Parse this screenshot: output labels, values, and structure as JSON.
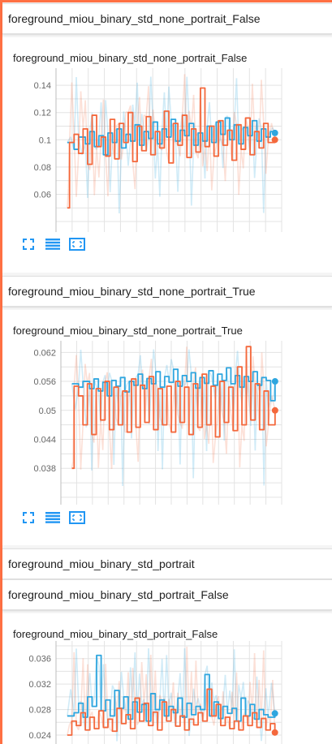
{
  "sections": {
    "s1": {
      "header": "foreground_miou_binary_std_none_portrait_False"
    },
    "s2": {
      "header": "foreground_miou_binary_std_none_portrait_True"
    },
    "s3": {
      "header": "foreground_miou_binary_std_portrait"
    },
    "s4": {
      "header": "foreground_miou_binary_std_portrait_False"
    }
  },
  "colors": {
    "accent": "#ff7043",
    "series_blue": "#2fa6df",
    "series_orange": "#f4683c"
  },
  "icons": [
    "fit-domain-icon",
    "toggle-log-scale-icon",
    "expand-chart-icon"
  ],
  "chart_data": [
    {
      "type": "line",
      "title": "foreground_miou_binary_std_none_portrait_False",
      "ylim": [
        0.043,
        0.149
      ],
      "yticks": [
        "0.14",
        "0.12",
        "0.1",
        "0.08",
        "0.06"
      ],
      "ytick_values": [
        0.14,
        0.12,
        0.1,
        0.08,
        0.06
      ],
      "xlim": [
        0,
        1
      ],
      "grid": true,
      "series": [
        {
          "color": "#2fa6df",
          "x": [
            0.05,
            0.08,
            0.1,
            0.13,
            0.15,
            0.17,
            0.19,
            0.21,
            0.23,
            0.25,
            0.27,
            0.29,
            0.31,
            0.33,
            0.35,
            0.37,
            0.39,
            0.41,
            0.43,
            0.45,
            0.47,
            0.49,
            0.51,
            0.53,
            0.55,
            0.57,
            0.59,
            0.61,
            0.63,
            0.65,
            0.67,
            0.69,
            0.71,
            0.73,
            0.75,
            0.77,
            0.79,
            0.81,
            0.83,
            0.85,
            0.87,
            0.89,
            0.91,
            0.93,
            0.95,
            0.97
          ],
          "y": [
            0.098,
            0.093,
            0.102,
            0.097,
            0.106,
            0.095,
            0.103,
            0.089,
            0.105,
            0.098,
            0.108,
            0.094,
            0.104,
            0.099,
            0.111,
            0.096,
            0.106,
            0.101,
            0.113,
            0.097,
            0.108,
            0.102,
            0.115,
            0.099,
            0.107,
            0.103,
            0.112,
            0.096,
            0.105,
            0.099,
            0.11,
            0.098,
            0.113,
            0.104,
            0.116,
            0.1,
            0.111,
            0.097,
            0.109,
            0.103,
            0.114,
            0.099,
            0.108,
            0.102,
            0.106,
            0.105
          ]
        },
        {
          "color": "#f4683c",
          "x": [
            0.05,
            0.06,
            0.08,
            0.1,
            0.12,
            0.14,
            0.16,
            0.18,
            0.2,
            0.22,
            0.24,
            0.26,
            0.28,
            0.3,
            0.32,
            0.34,
            0.36,
            0.38,
            0.4,
            0.42,
            0.44,
            0.46,
            0.48,
            0.5,
            0.52,
            0.54,
            0.56,
            0.58,
            0.6,
            0.62,
            0.64,
            0.66,
            0.68,
            0.7,
            0.72,
            0.74,
            0.76,
            0.78,
            0.8,
            0.82,
            0.84,
            0.86,
            0.88,
            0.9,
            0.92,
            0.94,
            0.97
          ],
          "y": [
            0.05,
            0.098,
            0.104,
            0.09,
            0.108,
            0.082,
            0.118,
            0.095,
            0.102,
            0.088,
            0.115,
            0.086,
            0.112,
            0.098,
            0.12,
            0.084,
            0.11,
            0.092,
            0.117,
            0.089,
            0.106,
            0.094,
            0.121,
            0.083,
            0.112,
            0.096,
            0.118,
            0.087,
            0.108,
            0.091,
            0.138,
            0.095,
            0.11,
            0.088,
            0.114,
            0.096,
            0.107,
            0.085,
            0.111,
            0.093,
            0.116,
            0.089,
            0.106,
            0.094,
            0.112,
            0.098,
            0.1
          ]
        }
      ]
    },
    {
      "type": "line",
      "title": "foreground_miou_binary_std_none_portrait_True",
      "ylim": [
        0.0335,
        0.0634
      ],
      "yticks": [
        "0.062",
        "0.056",
        "0.05",
        "0.044",
        "0.038"
      ],
      "ytick_values": [
        0.062,
        0.056,
        0.05,
        0.044,
        0.038
      ],
      "xlim": [
        0,
        1
      ],
      "grid": true,
      "series": [
        {
          "color": "#2fa6df",
          "x": [
            0.05,
            0.08,
            0.1,
            0.13,
            0.15,
            0.17,
            0.19,
            0.21,
            0.23,
            0.25,
            0.27,
            0.29,
            0.31,
            0.33,
            0.35,
            0.37,
            0.39,
            0.41,
            0.43,
            0.45,
            0.47,
            0.49,
            0.51,
            0.53,
            0.55,
            0.57,
            0.59,
            0.61,
            0.63,
            0.65,
            0.67,
            0.69,
            0.71,
            0.73,
            0.75,
            0.77,
            0.79,
            0.81,
            0.83,
            0.85,
            0.87,
            0.89,
            0.91,
            0.93,
            0.95,
            0.97
          ],
          "y": [
            0.0555,
            0.0548,
            0.056,
            0.0545,
            0.0565,
            0.054,
            0.0558,
            0.053,
            0.0562,
            0.055,
            0.0568,
            0.0538,
            0.056,
            0.0552,
            0.0575,
            0.0545,
            0.0566,
            0.0555,
            0.058,
            0.0548,
            0.057,
            0.0558,
            0.0585,
            0.055,
            0.0572,
            0.056,
            0.0578,
            0.0546,
            0.0568,
            0.0556,
            0.0582,
            0.0552,
            0.0575,
            0.0562,
            0.0588,
            0.0555,
            0.0572,
            0.0548,
            0.057,
            0.056,
            0.058,
            0.0552,
            0.0568,
            0.0562,
            0.052,
            0.056
          ]
        },
        {
          "color": "#f4683c",
          "x": [
            0.05,
            0.06,
            0.08,
            0.1,
            0.12,
            0.14,
            0.16,
            0.18,
            0.2,
            0.22,
            0.24,
            0.26,
            0.28,
            0.3,
            0.32,
            0.34,
            0.36,
            0.38,
            0.4,
            0.42,
            0.44,
            0.46,
            0.48,
            0.5,
            0.52,
            0.54,
            0.56,
            0.58,
            0.6,
            0.62,
            0.64,
            0.66,
            0.68,
            0.7,
            0.72,
            0.74,
            0.76,
            0.78,
            0.8,
            0.82,
            0.84,
            0.86,
            0.88,
            0.9,
            0.92,
            0.94,
            0.97
          ],
          "y": [
            0.038,
            0.055,
            0.053,
            0.047,
            0.0555,
            0.045,
            0.0545,
            0.048,
            0.056,
            0.046,
            0.0548,
            0.047,
            0.054,
            0.0455,
            0.0565,
            0.0465,
            0.0552,
            0.0475,
            0.057,
            0.046,
            0.0545,
            0.047,
            0.055,
            0.0455,
            0.056,
            0.0475,
            0.0548,
            0.045,
            0.0555,
            0.0465,
            0.0575,
            0.047,
            0.055,
            0.0445,
            0.056,
            0.0475,
            0.0548,
            0.0458,
            0.059,
            0.047,
            0.0632,
            0.048,
            0.0555,
            0.046,
            0.054,
            0.047,
            0.05
          ]
        }
      ]
    },
    {
      "type": "line",
      "title": "foreground_miou_binary_std_portrait_False",
      "ylim": [
        0.0226,
        0.038
      ],
      "yticks": [
        "0.036",
        "0.032",
        "0.028",
        "0.024"
      ],
      "ytick_values": [
        0.036,
        0.032,
        0.028,
        0.024
      ],
      "xlim": [
        0,
        1
      ],
      "grid": true,
      "series": [
        {
          "color": "#2fa6df",
          "x": [
            0.05,
            0.08,
            0.1,
            0.12,
            0.14,
            0.16,
            0.18,
            0.2,
            0.22,
            0.24,
            0.26,
            0.28,
            0.3,
            0.32,
            0.34,
            0.36,
            0.38,
            0.4,
            0.42,
            0.44,
            0.46,
            0.48,
            0.5,
            0.52,
            0.54,
            0.56,
            0.58,
            0.6,
            0.62,
            0.64,
            0.66,
            0.68,
            0.7,
            0.72,
            0.74,
            0.76,
            0.78,
            0.8,
            0.82,
            0.84,
            0.86,
            0.88,
            0.9,
            0.92,
            0.94,
            0.97
          ],
          "y": [
            0.027,
            0.0275,
            0.029,
            0.0268,
            0.03,
            0.0285,
            0.0365,
            0.0278,
            0.0295,
            0.027,
            0.031,
            0.0282,
            0.03,
            0.0265,
            0.0292,
            0.0276,
            0.0288,
            0.0262,
            0.0305,
            0.028,
            0.0295,
            0.027,
            0.0285,
            0.0275,
            0.0298,
            0.0268,
            0.029,
            0.0272,
            0.0285,
            0.028,
            0.0335,
            0.027,
            0.0292,
            0.0266,
            0.0285,
            0.0274,
            0.0282,
            0.0262,
            0.0298,
            0.027,
            0.0288,
            0.0265,
            0.028,
            0.0272,
            0.0268,
            0.0274
          ]
        },
        {
          "color": "#f4683c",
          "x": [
            0.05,
            0.07,
            0.09,
            0.11,
            0.13,
            0.15,
            0.17,
            0.19,
            0.21,
            0.23,
            0.25,
            0.27,
            0.29,
            0.31,
            0.33,
            0.35,
            0.37,
            0.39,
            0.41,
            0.43,
            0.45,
            0.47,
            0.49,
            0.51,
            0.53,
            0.55,
            0.57,
            0.59,
            0.61,
            0.63,
            0.65,
            0.67,
            0.69,
            0.71,
            0.73,
            0.75,
            0.77,
            0.79,
            0.81,
            0.83,
            0.85,
            0.87,
            0.89,
            0.91,
            0.93,
            0.95,
            0.97
          ],
          "y": [
            0.024,
            0.0262,
            0.0255,
            0.0275,
            0.0248,
            0.0268,
            0.025,
            0.0278,
            0.0252,
            0.0265,
            0.0246,
            0.0282,
            0.0258,
            0.0272,
            0.025,
            0.0298,
            0.0262,
            0.029,
            0.0255,
            0.0276,
            0.0248,
            0.0292,
            0.0262,
            0.028,
            0.0254,
            0.027,
            0.0248,
            0.0265,
            0.0256,
            0.0275,
            0.0262,
            0.0312,
            0.027,
            0.0288,
            0.0255,
            0.0268,
            0.025,
            0.0262,
            0.0248,
            0.027,
            0.0255,
            0.0275,
            0.0252,
            0.0266,
            0.0248,
            0.0258,
            0.0244
          ]
        }
      ]
    }
  ]
}
